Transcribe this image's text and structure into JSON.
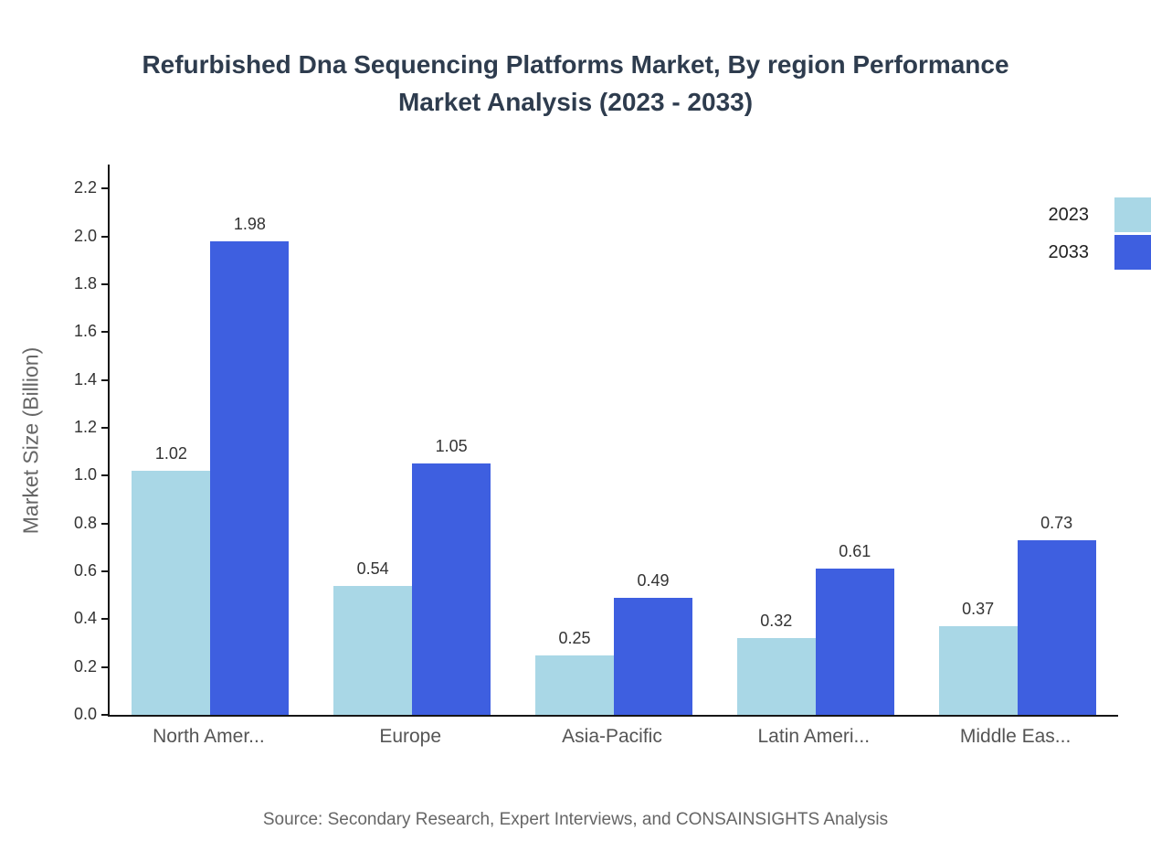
{
  "title": {
    "line1": "Refurbished Dna Sequencing Platforms Market, By region Performance",
    "line2": "Market Analysis (2023 - 2033)"
  },
  "chart_data": {
    "type": "bar",
    "categories": [
      "North Amer...",
      "Europe",
      "Asia-Pacific",
      "Latin Ameri...",
      "Middle Eas..."
    ],
    "series": [
      {
        "name": "2023",
        "color": "#a9d7e6",
        "values": [
          1.02,
          0.54,
          0.25,
          0.32,
          0.37
        ]
      },
      {
        "name": "2033",
        "color": "#3e5fe0",
        "values": [
          1.98,
          1.05,
          0.49,
          0.61,
          0.73
        ]
      }
    ],
    "ylabel": "Market Size (Billion)",
    "xlabel": "",
    "ylim": [
      0,
      2.3
    ],
    "yticks": [
      0.0,
      0.2,
      0.4,
      0.6,
      0.8,
      1.0,
      1.2,
      1.4,
      1.6,
      1.8,
      2.0,
      2.2
    ],
    "grid": false,
    "legend_position": "top-right",
    "value_labels": true
  },
  "source": "Source: Secondary Research, Expert Interviews, and CONSAINSIGHTS Analysis"
}
